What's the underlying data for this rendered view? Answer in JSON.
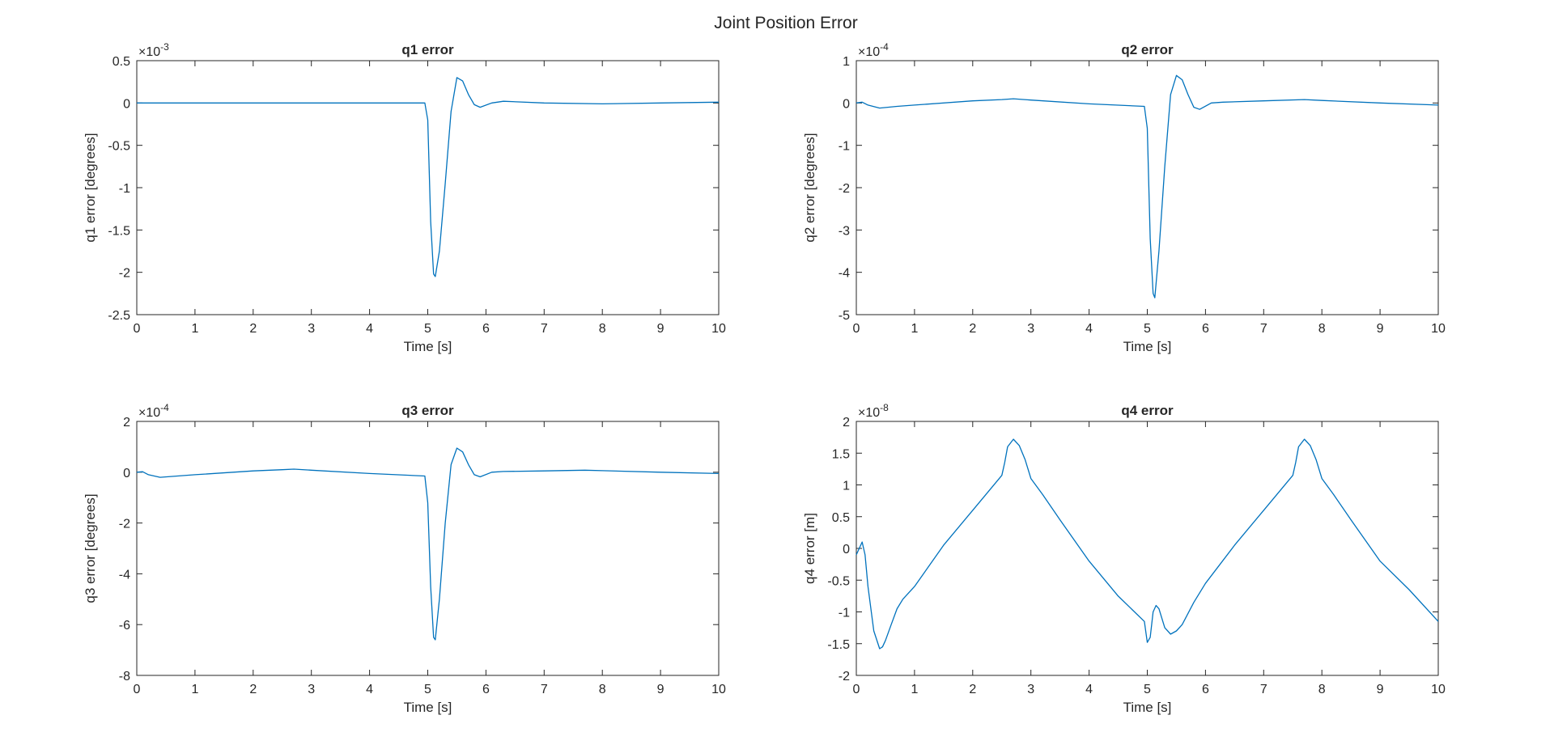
{
  "figure_title": "Joint Position Error",
  "colors": {
    "line": "#0072BD",
    "axes": "#262626",
    "background": "#ffffff"
  },
  "chart_data": [
    {
      "type": "line",
      "title": "q1 error",
      "xlabel": "Time [s]",
      "ylabel": "q1 error [degrees]",
      "exponent": "-3",
      "xlim": [
        0,
        10
      ],
      "ylim": [
        -2.5,
        0.5
      ],
      "xticks": [
        0,
        1,
        2,
        3,
        4,
        5,
        6,
        7,
        8,
        9,
        10
      ],
      "yticks": [
        -2.5,
        -2,
        -1.5,
        -1,
        -0.5,
        0,
        0.5
      ],
      "ytick_labels": [
        "-2.5",
        "-2",
        "-1.5",
        "-1",
        "-0.5",
        "0",
        "0.5"
      ],
      "grid": false,
      "series": [
        {
          "x": [
            0,
            1,
            2,
            3,
            4,
            4.95,
            5.0,
            5.05,
            5.1,
            5.13,
            5.2,
            5.3,
            5.4,
            5.5,
            5.6,
            5.7,
            5.8,
            5.9,
            6.1,
            6.3,
            7,
            8,
            9,
            10
          ],
          "y": [
            0,
            0,
            0,
            0,
            0,
            0,
            -0.2,
            -1.4,
            -2.02,
            -2.05,
            -1.75,
            -0.95,
            -0.1,
            0.3,
            0.26,
            0.1,
            -0.02,
            -0.05,
            0.0,
            0.02,
            0,
            -0.01,
            0,
            0.01
          ]
        }
      ]
    },
    {
      "type": "line",
      "title": "q2 error",
      "xlabel": "Time [s]",
      "ylabel": "q2 error [degrees]",
      "exponent": "-4",
      "xlim": [
        0,
        10
      ],
      "ylim": [
        -5,
        1
      ],
      "xticks": [
        0,
        1,
        2,
        3,
        4,
        5,
        6,
        7,
        8,
        9,
        10
      ],
      "yticks": [
        -5,
        -4,
        -3,
        -2,
        -1,
        0,
        1
      ],
      "ytick_labels": [
        "-5",
        "-4",
        "-3",
        "-2",
        "-1",
        "0",
        "1"
      ],
      "grid": false,
      "series": [
        {
          "x": [
            0,
            0.1,
            0.2,
            0.4,
            0.7,
            1,
            2,
            2.5,
            2.7,
            3,
            4,
            4.95,
            5.0,
            5.05,
            5.1,
            5.13,
            5.2,
            5.3,
            5.4,
            5.5,
            5.6,
            5.7,
            5.8,
            5.9,
            6.1,
            6.3,
            7,
            7.7,
            8,
            9,
            10
          ],
          "y": [
            0,
            0.02,
            -0.05,
            -0.12,
            -0.08,
            -0.05,
            0.05,
            0.08,
            0.1,
            0.07,
            -0.02,
            -0.08,
            -0.6,
            -3.2,
            -4.5,
            -4.6,
            -3.5,
            -1.5,
            0.2,
            0.65,
            0.55,
            0.2,
            -0.1,
            -0.15,
            0,
            0.02,
            0.05,
            0.08,
            0.06,
            0,
            -0.05
          ]
        }
      ]
    },
    {
      "type": "line",
      "title": "q3 error",
      "xlabel": "Time [s]",
      "ylabel": "q3 error [degrees]",
      "exponent": "-4",
      "xlim": [
        0,
        10
      ],
      "ylim": [
        -8,
        2
      ],
      "xticks": [
        0,
        1,
        2,
        3,
        4,
        5,
        6,
        7,
        8,
        9,
        10
      ],
      "yticks": [
        -8,
        -6,
        -4,
        -2,
        0,
        2
      ],
      "ytick_labels": [
        "-8",
        "-6",
        "-4",
        "-2",
        "0",
        "2"
      ],
      "grid": false,
      "series": [
        {
          "x": [
            0,
            0.1,
            0.2,
            0.4,
            0.7,
            1,
            2,
            2.5,
            2.7,
            3,
            4,
            4.95,
            5.0,
            5.05,
            5.1,
            5.13,
            5.2,
            5.3,
            5.4,
            5.5,
            5.6,
            5.7,
            5.8,
            5.9,
            6.1,
            6.3,
            7,
            7.7,
            8,
            9,
            10
          ],
          "y": [
            0,
            0.02,
            -0.1,
            -0.2,
            -0.15,
            -0.1,
            0.05,
            0.1,
            0.12,
            0.08,
            -0.05,
            -0.15,
            -1.2,
            -4.5,
            -6.5,
            -6.6,
            -5.0,
            -2.0,
            0.3,
            0.95,
            0.8,
            0.3,
            -0.1,
            -0.18,
            0,
            0.03,
            0.05,
            0.08,
            0.06,
            0,
            -0.05
          ]
        }
      ]
    },
    {
      "type": "line",
      "title": "q4 error",
      "xlabel": "Time [s]",
      "ylabel": "q4 error [m]",
      "exponent": "-8",
      "xlim": [
        0,
        10
      ],
      "ylim": [
        -2,
        2
      ],
      "xticks": [
        0,
        1,
        2,
        3,
        4,
        5,
        6,
        7,
        8,
        9,
        10
      ],
      "yticks": [
        -2,
        -1.5,
        -1,
        -0.5,
        0,
        0.5,
        1,
        1.5,
        2
      ],
      "ytick_labels": [
        "-2",
        "-1.5",
        "-1",
        "-0.5",
        "0",
        "0.5",
        "1",
        "1.5",
        "2"
      ],
      "grid": false,
      "series": [
        {
          "x": [
            0,
            0.05,
            0.1,
            0.15,
            0.2,
            0.3,
            0.4,
            0.45,
            0.5,
            0.6,
            0.7,
            0.8,
            1,
            1.5,
            2,
            2.5,
            2.55,
            2.6,
            2.7,
            2.8,
            2.9,
            3,
            3.2,
            3.5,
            4,
            4.5,
            4.95,
            5.0,
            5.05,
            5.1,
            5.15,
            5.2,
            5.3,
            5.4,
            5.5,
            5.6,
            5.8,
            6,
            6.5,
            7,
            7.5,
            7.55,
            7.6,
            7.7,
            7.8,
            7.9,
            8,
            8.2,
            8.5,
            9,
            9.5,
            10
          ],
          "y": [
            -0.1,
            0,
            0.1,
            -0.1,
            -0.6,
            -1.3,
            -1.58,
            -1.55,
            -1.45,
            -1.2,
            -0.95,
            -0.8,
            -0.6,
            0.05,
            0.6,
            1.15,
            1.35,
            1.6,
            1.72,
            1.62,
            1.4,
            1.1,
            0.85,
            0.45,
            -0.2,
            -0.75,
            -1.15,
            -1.48,
            -1.4,
            -1.0,
            -0.9,
            -0.95,
            -1.25,
            -1.35,
            -1.3,
            -1.2,
            -0.85,
            -0.55,
            0.05,
            0.6,
            1.15,
            1.35,
            1.6,
            1.72,
            1.62,
            1.4,
            1.1,
            0.85,
            0.45,
            -0.2,
            -0.65,
            -1.15
          ]
        }
      ]
    }
  ]
}
